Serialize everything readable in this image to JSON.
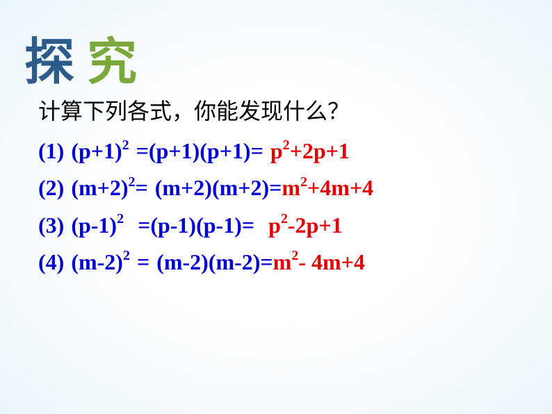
{
  "title": {
    "chars": [
      "探",
      "究"
    ],
    "colors": [
      "#2e5c8a",
      "#7aa83a"
    ]
  },
  "question": "计算下列各式，你能发现什么？",
  "rows": [
    {
      "num": "(1)",
      "lhs_base": "(p+1)",
      "lhs_exp": "2",
      "mid": "=(p+1)(p+1)=",
      "ans_term1_base": "p",
      "ans_term1_exp": "2",
      "ans_rest": "+2p+1"
    },
    {
      "num": "(2)",
      "lhs_base": "(m+2)",
      "lhs_exp": "2",
      "mid_eq": "=",
      "mid_expand": "(m+2)(m+2)=",
      "ans_term1_base": "m",
      "ans_term1_exp": "2",
      "ans_rest": "+4m+4"
    },
    {
      "num": "(3)",
      "lhs_base": "(p-1)",
      "lhs_exp": "2",
      "mid": "=(p-1)(p-1)=",
      "ans_term1_base": "p",
      "ans_term1_exp": "2",
      "ans_rest": "-2p+1"
    },
    {
      "num": "(4)",
      "lhs_base": "(m-2)",
      "lhs_exp": "2",
      "mid_eq": "=",
      "mid_expand": "(m-2)(m-2)=",
      "ans_term1_base": "m",
      "ans_term1_exp": "2",
      "ans_rest": "- 4m+4"
    }
  ],
  "colors": {
    "blue": "#0000d0",
    "red": "#e00000",
    "text": "#000000",
    "bg_center": "#ffffff",
    "bg_edge": "#eaf5fb"
  },
  "fonts": {
    "title_size": 72,
    "body_size": 32,
    "sup_size": 20
  }
}
